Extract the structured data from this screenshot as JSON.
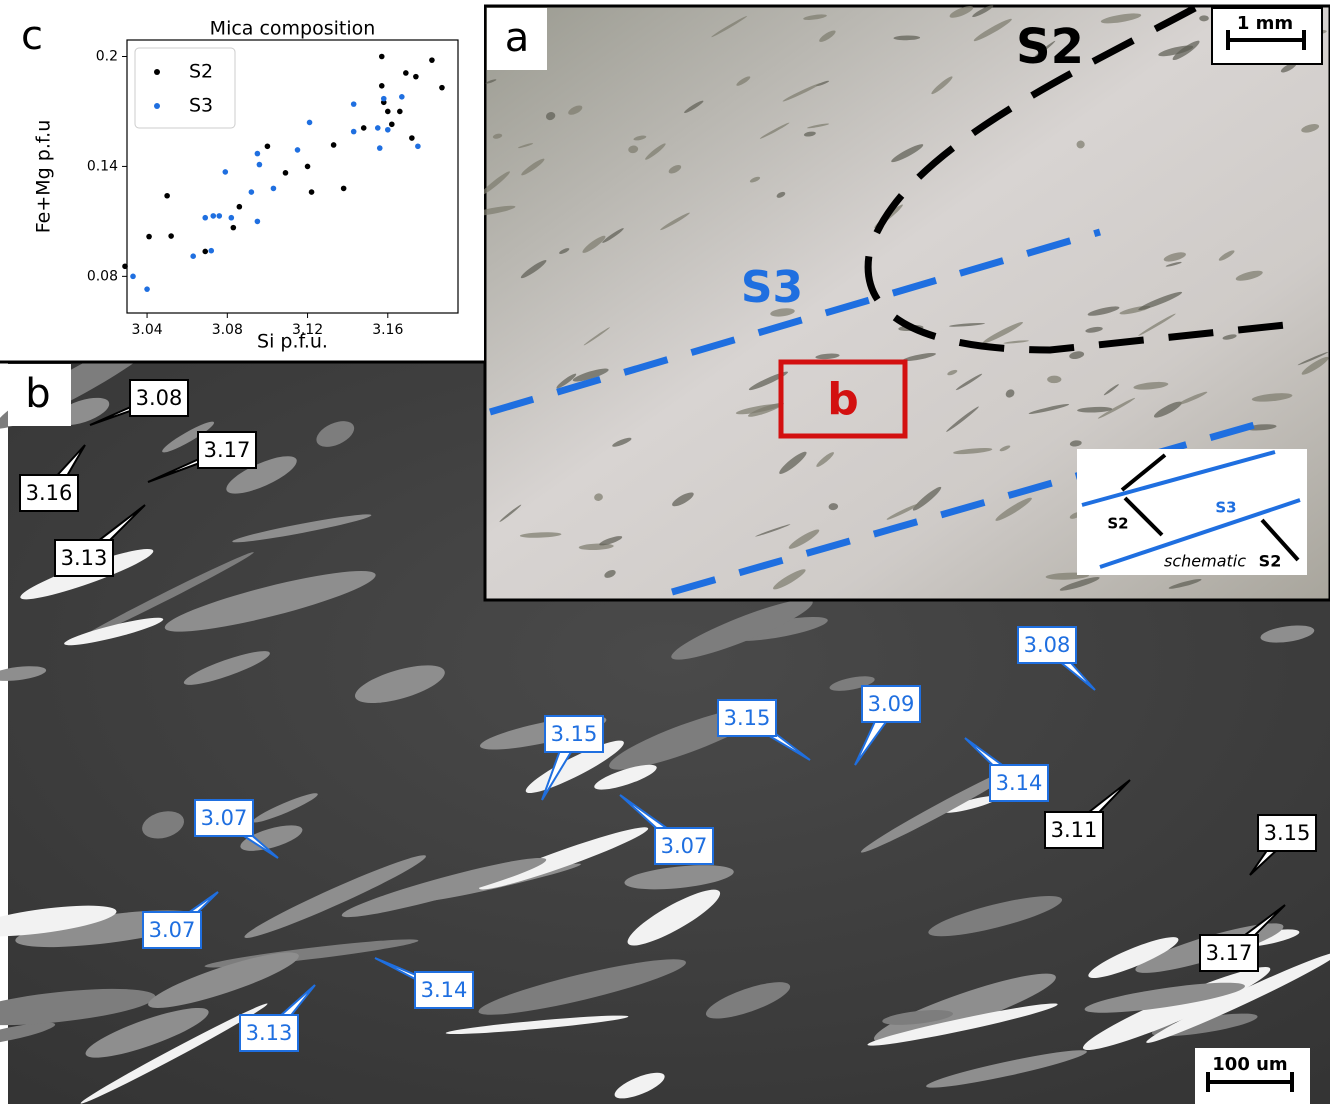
{
  "chart_data": {
    "type": "scatter",
    "title": "Mica composition",
    "x_label": "Si p.f.u.",
    "y_label": "Fe+Mg p.f.u",
    "xlim": [
      3.03,
      3.195
    ],
    "ylim": [
      0.06,
      0.209
    ],
    "xticks": [
      3.04,
      3.08,
      3.12,
      3.16
    ],
    "yticks": [
      0.08,
      0.14,
      0.2
    ],
    "legend": "upper left",
    "series": [
      {
        "name": "S2",
        "color": "#000000",
        "x": [
          3.029,
          3.041,
          3.05,
          3.052,
          3.069,
          3.083,
          3.086,
          3.1,
          3.109,
          3.12,
          3.122,
          3.133,
          3.138,
          3.148,
          3.157,
          3.157,
          3.158,
          3.16,
          3.162,
          3.169,
          3.172,
          3.174,
          3.182,
          3.187,
          3.166
        ],
        "values": [
          0.0855,
          0.1017,
          0.124,
          0.102,
          0.0936,
          0.1066,
          0.118,
          0.151,
          0.1365,
          0.14,
          0.126,
          0.1517,
          0.128,
          0.161,
          0.2,
          0.184,
          0.175,
          0.17,
          0.163,
          0.191,
          0.1555,
          0.189,
          0.198,
          0.183,
          0.17
        ]
      },
      {
        "name": "S3",
        "color": "#1f6fe0",
        "x": [
          3.033,
          3.04,
          3.063,
          3.069,
          3.072,
          3.073,
          3.076,
          3.082,
          3.079,
          3.092,
          3.095,
          3.095,
          3.096,
          3.103,
          3.115,
          3.121,
          3.143,
          3.143,
          3.155,
          3.156,
          3.16,
          3.167,
          3.175,
          3.158
        ],
        "values": [
          0.08,
          0.073,
          0.091,
          0.112,
          0.094,
          0.113,
          0.113,
          0.112,
          0.137,
          0.126,
          0.11,
          0.147,
          0.141,
          0.128,
          0.149,
          0.164,
          0.174,
          0.159,
          0.161,
          0.15,
          0.16,
          0.178,
          0.151,
          0.177
        ]
      }
    ]
  },
  "panel_c": {
    "letter": "c"
  },
  "panel_a": {
    "letter": "a",
    "scale": "1 mm",
    "s2": "S2",
    "s3": "S3",
    "box": "b",
    "inset": {
      "s2_left": "S2",
      "s3": "S3",
      "caption": "schematic",
      "s2_right": "S2"
    }
  },
  "panel_b": {
    "letter": "b",
    "scale": "100 um",
    "s2_labels": [
      "3.08",
      "3.17",
      "3.16",
      "3.13",
      "3.11",
      "3.15",
      "3.17"
    ],
    "s3_labels": [
      "3.08",
      "3.09",
      "3.15",
      "3.15",
      "3.14",
      "3.07",
      "3.07",
      "3.07",
      "3.14",
      "3.13"
    ]
  }
}
